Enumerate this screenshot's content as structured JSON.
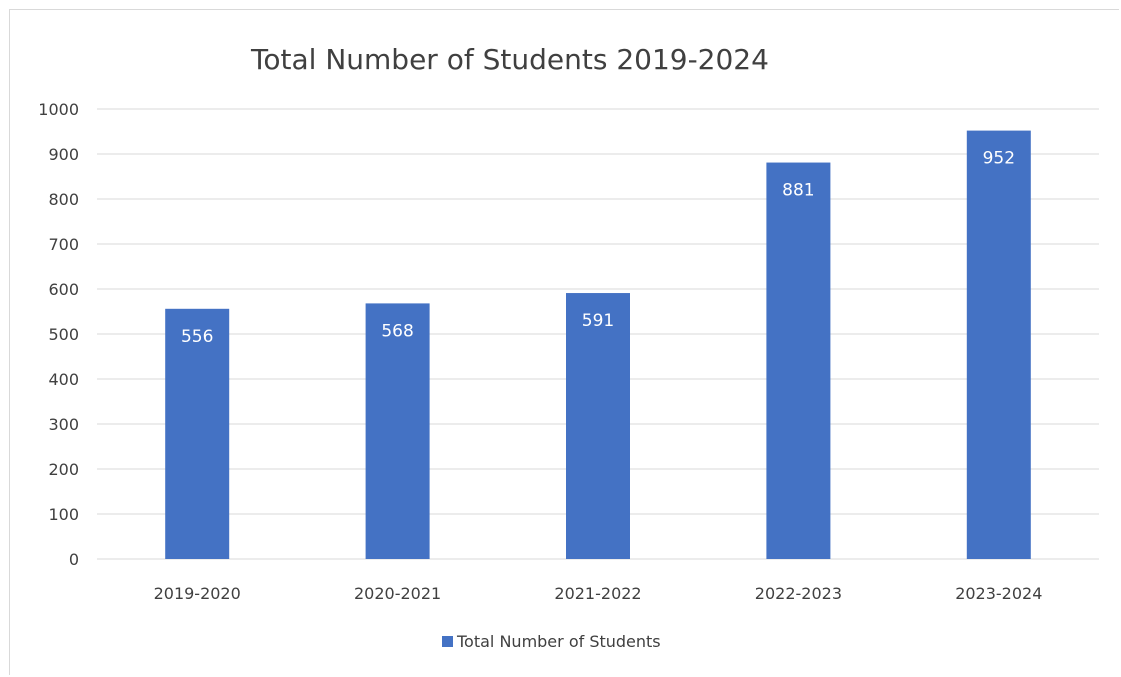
{
  "chart_data": {
    "type": "bar",
    "title": "Total Number of Students 2019-2024",
    "xlabel": "",
    "ylabel": "",
    "categories": [
      "2019-2020",
      "2020-2021",
      "2021-2022",
      "2022-2023",
      "2023-2024"
    ],
    "series": [
      {
        "name": "Total Number of Students",
        "values": [
          556,
          568,
          591,
          881,
          952
        ],
        "color": "#4472C4"
      }
    ],
    "ylim": [
      0,
      1000
    ],
    "yticks": [
      0,
      100,
      200,
      300,
      400,
      500,
      600,
      700,
      800,
      900,
      1000
    ],
    "grid": true,
    "data_labels": "inside-end",
    "legend": "bottom",
    "gridline_color": "#d9d9d9",
    "text_color": "#404040"
  }
}
